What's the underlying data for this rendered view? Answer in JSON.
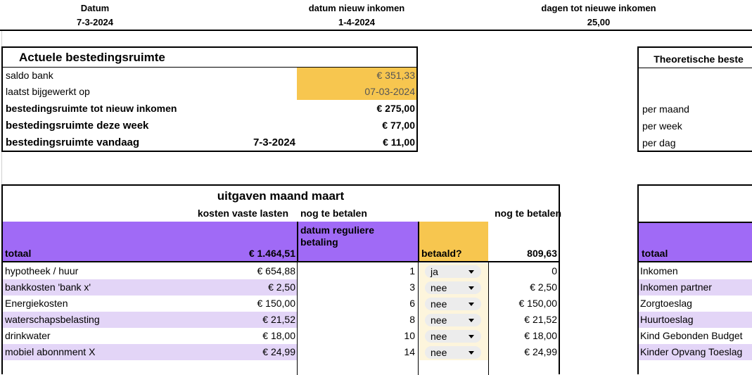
{
  "header": {
    "datum_label": "Datum",
    "datum_value": "7-3-2024",
    "nieuw_label": "datum nieuw inkomen",
    "nieuw_value": "1-4-2024",
    "dagen_label": "dagen tot nieuwe inkomen",
    "dagen_value": "25,00"
  },
  "actueel": {
    "title": "Actuele bestedingsruimte",
    "rows": [
      {
        "label": "saldo bank",
        "date": "",
        "value": "€ 351,33"
      },
      {
        "label": "laatst bijgewerkt op",
        "date": "",
        "value": "07-03-2024"
      },
      {
        "label": "bestedingsruimte tot nieuw inkomen",
        "date": "",
        "value": "€ 275,00"
      },
      {
        "label": "bestedingsruimte deze week",
        "date": "",
        "value": "€ 77,00"
      },
      {
        "label": "bestedingsruimte vandaag",
        "date": "7-3-2024",
        "value": "€ 11,00"
      }
    ]
  },
  "theoretisch": {
    "title": "Theoretische beste",
    "rows": [
      "per maand",
      "per week",
      "per dag"
    ]
  },
  "uitgaven": {
    "title": "uitgaven maand maart",
    "sub_kosten": "kosten vaste lasten",
    "sub_nog": "nog te betalen",
    "sub_nog2": "nog te betalen",
    "col_totaal": "totaal",
    "col_totaal_value": "€ 1.464,51",
    "col_datum": "datum reguliere betaling",
    "col_betaald": "betaald?",
    "col_rest_value": "809,63",
    "rows": [
      {
        "name": "hypotheek / huur",
        "amount": "€ 654,88",
        "day": "1",
        "paid": "ja",
        "rest": "0"
      },
      {
        "name": "bankkosten 'bank x'",
        "amount": "€ 2,50",
        "day": "3",
        "paid": "nee",
        "rest": "€ 2,50"
      },
      {
        "name": "Energiekosten",
        "amount": "€ 150,00",
        "day": "6",
        "paid": "nee",
        "rest": "€ 150,00"
      },
      {
        "name": "waterschapsbelasting",
        "amount": "€ 21,52",
        "day": "8",
        "paid": "nee",
        "rest": "€ 21,52"
      },
      {
        "name": "drinkwater",
        "amount": "€ 18,00",
        "day": "10",
        "paid": "nee",
        "rest": "€ 18,00"
      },
      {
        "name": "mobiel abonnment X",
        "amount": "€ 24,99",
        "day": "14",
        "paid": "nee",
        "rest": "€ 24,99"
      }
    ]
  },
  "inkomsten": {
    "col_totaal": "totaal",
    "rows": [
      "Inkomen",
      "Inkomen partner",
      "Zorgtoeslag",
      "Huurtoeslag",
      "Kind Gebonden Budget",
      "Kinder Opvang Toeslag"
    ]
  },
  "colors": {
    "orange": "#f7c64f",
    "purple": "#a06af6",
    "lilac": "#e3d5f7",
    "cream": "#fdf5dc"
  }
}
